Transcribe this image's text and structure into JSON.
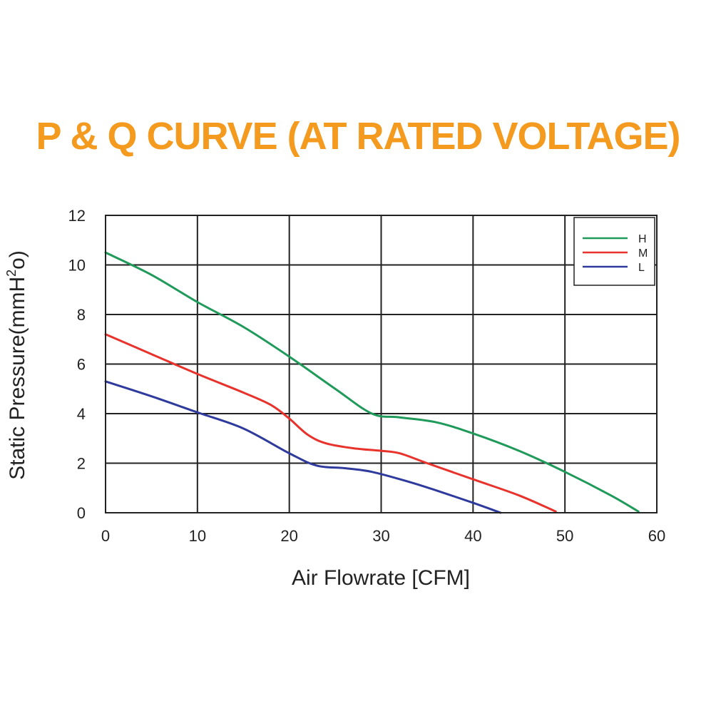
{
  "chart_data": {
    "type": "line",
    "title": "P & Q CURVE (AT RATED VOLTAGE)",
    "title_color": "#f39a1f",
    "xlabel": "Air  Flowrate   [CFM]",
    "ylabel_main": "Static Pressure(mmH",
    "ylabel_sup": "2",
    "ylabel_end": "o)",
    "xlim": [
      0,
      60
    ],
    "ylim": [
      0,
      12
    ],
    "xticks": [
      0,
      10,
      20,
      30,
      40,
      50,
      60
    ],
    "yticks": [
      0,
      2,
      4,
      6,
      8,
      10,
      12
    ],
    "grid": true,
    "legend_position": "top-right",
    "series": [
      {
        "name": "H",
        "color": "#1f9a5a",
        "points": [
          [
            0,
            10.5
          ],
          [
            5,
            9.6
          ],
          [
            10,
            8.5
          ],
          [
            15,
            7.5
          ],
          [
            20,
            6.3
          ],
          [
            25,
            5.0
          ],
          [
            29,
            4.0
          ],
          [
            32,
            3.85
          ],
          [
            36,
            3.65
          ],
          [
            40,
            3.2
          ],
          [
            45,
            2.5
          ],
          [
            50,
            1.65
          ],
          [
            55,
            0.7
          ],
          [
            58,
            0.05
          ]
        ]
      },
      {
        "name": "M",
        "color": "#e8322c",
        "points": [
          [
            0,
            7.2
          ],
          [
            5,
            6.4
          ],
          [
            10,
            5.6
          ],
          [
            15,
            4.85
          ],
          [
            18,
            4.35
          ],
          [
            20,
            3.8
          ],
          [
            22,
            3.15
          ],
          [
            24,
            2.8
          ],
          [
            27,
            2.6
          ],
          [
            30,
            2.5
          ],
          [
            32,
            2.4
          ],
          [
            35,
            2.0
          ],
          [
            40,
            1.35
          ],
          [
            45,
            0.7
          ],
          [
            49,
            0.05
          ]
        ]
      },
      {
        "name": "L",
        "color": "#2e3a9c",
        "points": [
          [
            0,
            5.3
          ],
          [
            5,
            4.7
          ],
          [
            10,
            4.05
          ],
          [
            15,
            3.4
          ],
          [
            20,
            2.4
          ],
          [
            23,
            1.9
          ],
          [
            26,
            1.8
          ],
          [
            29,
            1.65
          ],
          [
            33,
            1.25
          ],
          [
            36,
            0.9
          ],
          [
            40,
            0.4
          ],
          [
            43,
            0.0
          ]
        ]
      }
    ]
  }
}
